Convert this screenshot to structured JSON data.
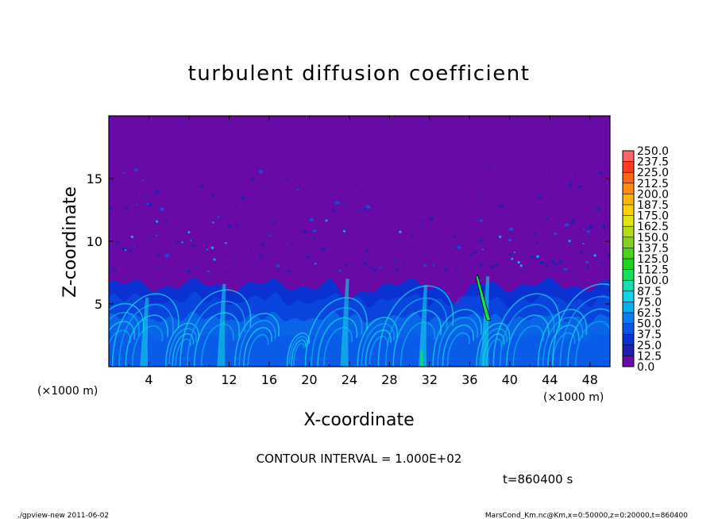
{
  "chart_data": {
    "type": "heatmap",
    "title": "turbulent diffusion coefficient",
    "xlabel": "X-coordinate",
    "ylabel": "Z-coordinate",
    "x_unit": "(×1000 m)",
    "y_unit": "(×1000 m)",
    "xlim": [
      0,
      50
    ],
    "ylim": [
      0,
      20
    ],
    "x_ticks": [
      4,
      8,
      12,
      16,
      20,
      24,
      28,
      32,
      36,
      40,
      44,
      48
    ],
    "y_ticks": [
      5,
      10,
      15
    ],
    "colorbar": {
      "levels": [
        "0.0",
        "12.5",
        "25.0",
        "37.5",
        "50.0",
        "62.5",
        "75.0",
        "87.5",
        "100.0",
        "112.5",
        "125.0",
        "137.5",
        "150.0",
        "162.5",
        "175.0",
        "187.5",
        "200.0",
        "212.5",
        "225.0",
        "237.5",
        "250.0"
      ],
      "colors": [
        "#6a0aa6",
        "#1f1fb4",
        "#0a32d2",
        "#0a55e6",
        "#0a7ef0",
        "#0aaeee",
        "#14d2e8",
        "#14dcb4",
        "#14e05a",
        "#1ed21e",
        "#4bd21e",
        "#87d21e",
        "#b4dc1e",
        "#dce614",
        "#ffd20a",
        "#ffb40a",
        "#ff8c0a",
        "#ff6414",
        "#ff3c1e",
        "#ff6464"
      ]
    },
    "background_value_color": "#6a0aa6",
    "contour_line_color": "#000000",
    "notes": {
      "contour_interval": "CONTOUR INTERVAL = 1.000E+02",
      "time": "t=860400 s"
    }
  },
  "footer": {
    "left": "./gpview-new 2011-06-02",
    "right": "MarsCond_Km.nc@Km,x=0:50000,z=0:20000,t=860400"
  }
}
